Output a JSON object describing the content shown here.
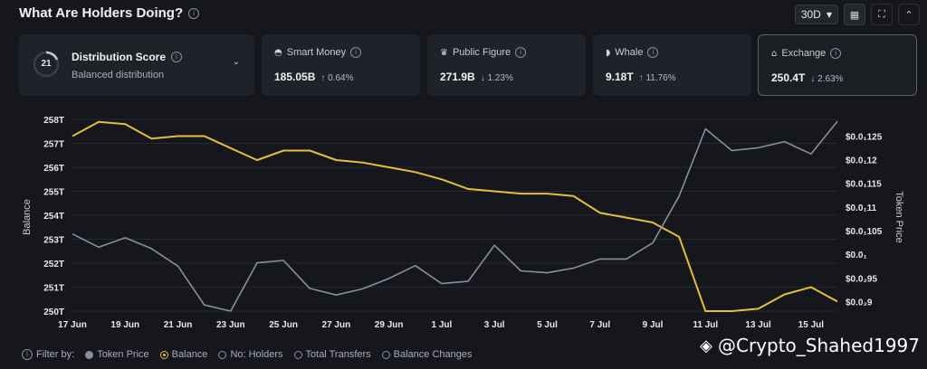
{
  "header": {
    "title": "What Are Holders Doing?",
    "period": "30D"
  },
  "distribution": {
    "score": "21",
    "title": "Distribution Score",
    "subtitle": "Balanced distribution"
  },
  "cards": [
    {
      "label": "Smart Money",
      "value": "185.05B",
      "change": "↑ 0.64%",
      "icon": "smart-money-icon"
    },
    {
      "label": "Public Figure",
      "value": "271.9B",
      "change": "↓ 1.23%",
      "icon": "public-figure-icon"
    },
    {
      "label": "Whale",
      "value": "9.18T",
      "change": "↑ 11.76%",
      "icon": "whale-icon"
    },
    {
      "label": "Exchange",
      "value": "250.4T",
      "change": "↓ 2.63%",
      "icon": "exchange-icon"
    }
  ],
  "filters": {
    "label": "Filter by:",
    "items": [
      "Token Price",
      "Balance",
      "No: Holders",
      "Total Transfers",
      "Balance Changes"
    ]
  },
  "watermark": "@Crypto_Shahed1997",
  "colors": {
    "balance": "#e5bf3c",
    "price": "#8b8f98"
  },
  "chart_data": {
    "type": "line",
    "x": [
      "17 Jun",
      "18 Jun",
      "19 Jun",
      "20 Jun",
      "21 Jun",
      "22 Jun",
      "23 Jun",
      "24 Jun",
      "25 Jun",
      "26 Jun",
      "27 Jun",
      "28 Jun",
      "29 Jun",
      "30 Jun",
      "1 Jul",
      "2 Jul",
      "3 Jul",
      "4 Jul",
      "5 Jul",
      "6 Jul",
      "7 Jul",
      "8 Jul",
      "9 Jul",
      "10 Jul",
      "11 Jul",
      "12 Jul",
      "13 Jul",
      "14 Jul",
      "15 Jul",
      "16 Jul"
    ],
    "x_tick_labels": [
      "17 Jun",
      "19 Jun",
      "21 Jun",
      "23 Jun",
      "25 Jun",
      "27 Jun",
      "29 Jun",
      "1 Jul",
      "3 Jul",
      "5 Jul",
      "7 Jul",
      "9 Jul",
      "11 Jul",
      "13 Jul",
      "15 Jul"
    ],
    "ylabel": "Balance",
    "ylabel_right": "Token Price",
    "ylim": [
      250,
      258
    ],
    "yticks": [
      "250T",
      "251T",
      "252T",
      "253T",
      "254T",
      "255T",
      "256T",
      "257T",
      "258T"
    ],
    "ylim_right": [
      0.0088,
      0.01285
    ],
    "yticks_right": [
      "$0.0₂9",
      "$0.0₂95",
      "$0.0₁",
      "$0.0₁105",
      "$0.0₁11",
      "$0.0₁115",
      "$0.0₁12",
      "$0.0₁125"
    ],
    "series": [
      {
        "name": "Balance",
        "axis": "left",
        "values": [
          257.3,
          257.9,
          257.8,
          257.2,
          257.3,
          257.3,
          256.8,
          256.3,
          256.7,
          256.7,
          256.3,
          256.2,
          256.0,
          255.8,
          255.5,
          255.1,
          255.0,
          254.9,
          254.9,
          254.8,
          254.1,
          253.9,
          253.7,
          253.1,
          250.0,
          250.0,
          250.1,
          250.7,
          251.0,
          250.4
        ]
      },
      {
        "name": "Token Price",
        "axis": "right",
        "values": [
          0.01043,
          0.01015,
          0.01035,
          0.01012,
          0.00975,
          0.00893,
          0.0088,
          0.00982,
          0.00987,
          0.00928,
          0.00914,
          0.00927,
          0.00949,
          0.00976,
          0.00938,
          0.00943,
          0.01019,
          0.00965,
          0.00961,
          0.00971,
          0.0099,
          0.0099,
          0.01024,
          0.01123,
          0.01265,
          0.01219,
          0.01225,
          0.01238,
          0.01212,
          0.01281
        ]
      }
    ]
  }
}
